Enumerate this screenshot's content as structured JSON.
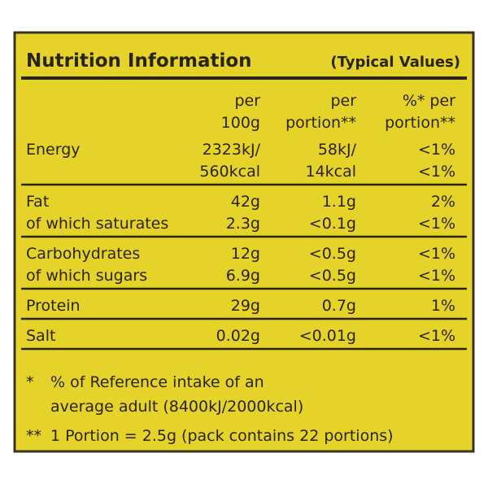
{
  "title": {
    "main": "Nutrition Information",
    "sub": "(Typical Values)"
  },
  "table": {
    "headers": [
      [
        "per",
        "100g"
      ],
      [
        "per",
        "portion**"
      ],
      [
        "%* per",
        "portion**"
      ]
    ],
    "groups": [
      [
        {
          "label": "Energy",
          "values": [
            [
              "2323kJ/",
              "560kcal"
            ],
            [
              "58kJ/",
              "14kcal"
            ],
            [
              "<1%",
              "<1%"
            ]
          ]
        }
      ],
      [
        {
          "label": "Fat",
          "values": [
            "42g",
            "1.1g",
            "2%"
          ]
        },
        {
          "label": "of which saturates",
          "values": [
            "2.3g",
            "<0.1g",
            "<1%"
          ]
        }
      ],
      [
        {
          "label": "Carbohydrates",
          "values": [
            "12g",
            "<0.5g",
            "<1%"
          ]
        },
        {
          "label": "of which sugars",
          "values": [
            "6.9g",
            "<0.5g",
            "<1%"
          ]
        }
      ],
      [
        {
          "label": "Protein",
          "values": [
            "29g",
            "0.7g",
            "1%"
          ]
        }
      ],
      [
        {
          "label": "Salt",
          "values": [
            "0.02g",
            "<0.01g",
            "<1%"
          ]
        }
      ]
    ]
  },
  "footnotes": [
    {
      "mark": "*",
      "lines": [
        "% of Reference intake of an",
        "average adult (8400kJ/2000kcal)"
      ]
    },
    {
      "mark": "**",
      "lines": [
        "1 Portion = 2.5g (pack contains 22 portions)"
      ]
    }
  ]
}
